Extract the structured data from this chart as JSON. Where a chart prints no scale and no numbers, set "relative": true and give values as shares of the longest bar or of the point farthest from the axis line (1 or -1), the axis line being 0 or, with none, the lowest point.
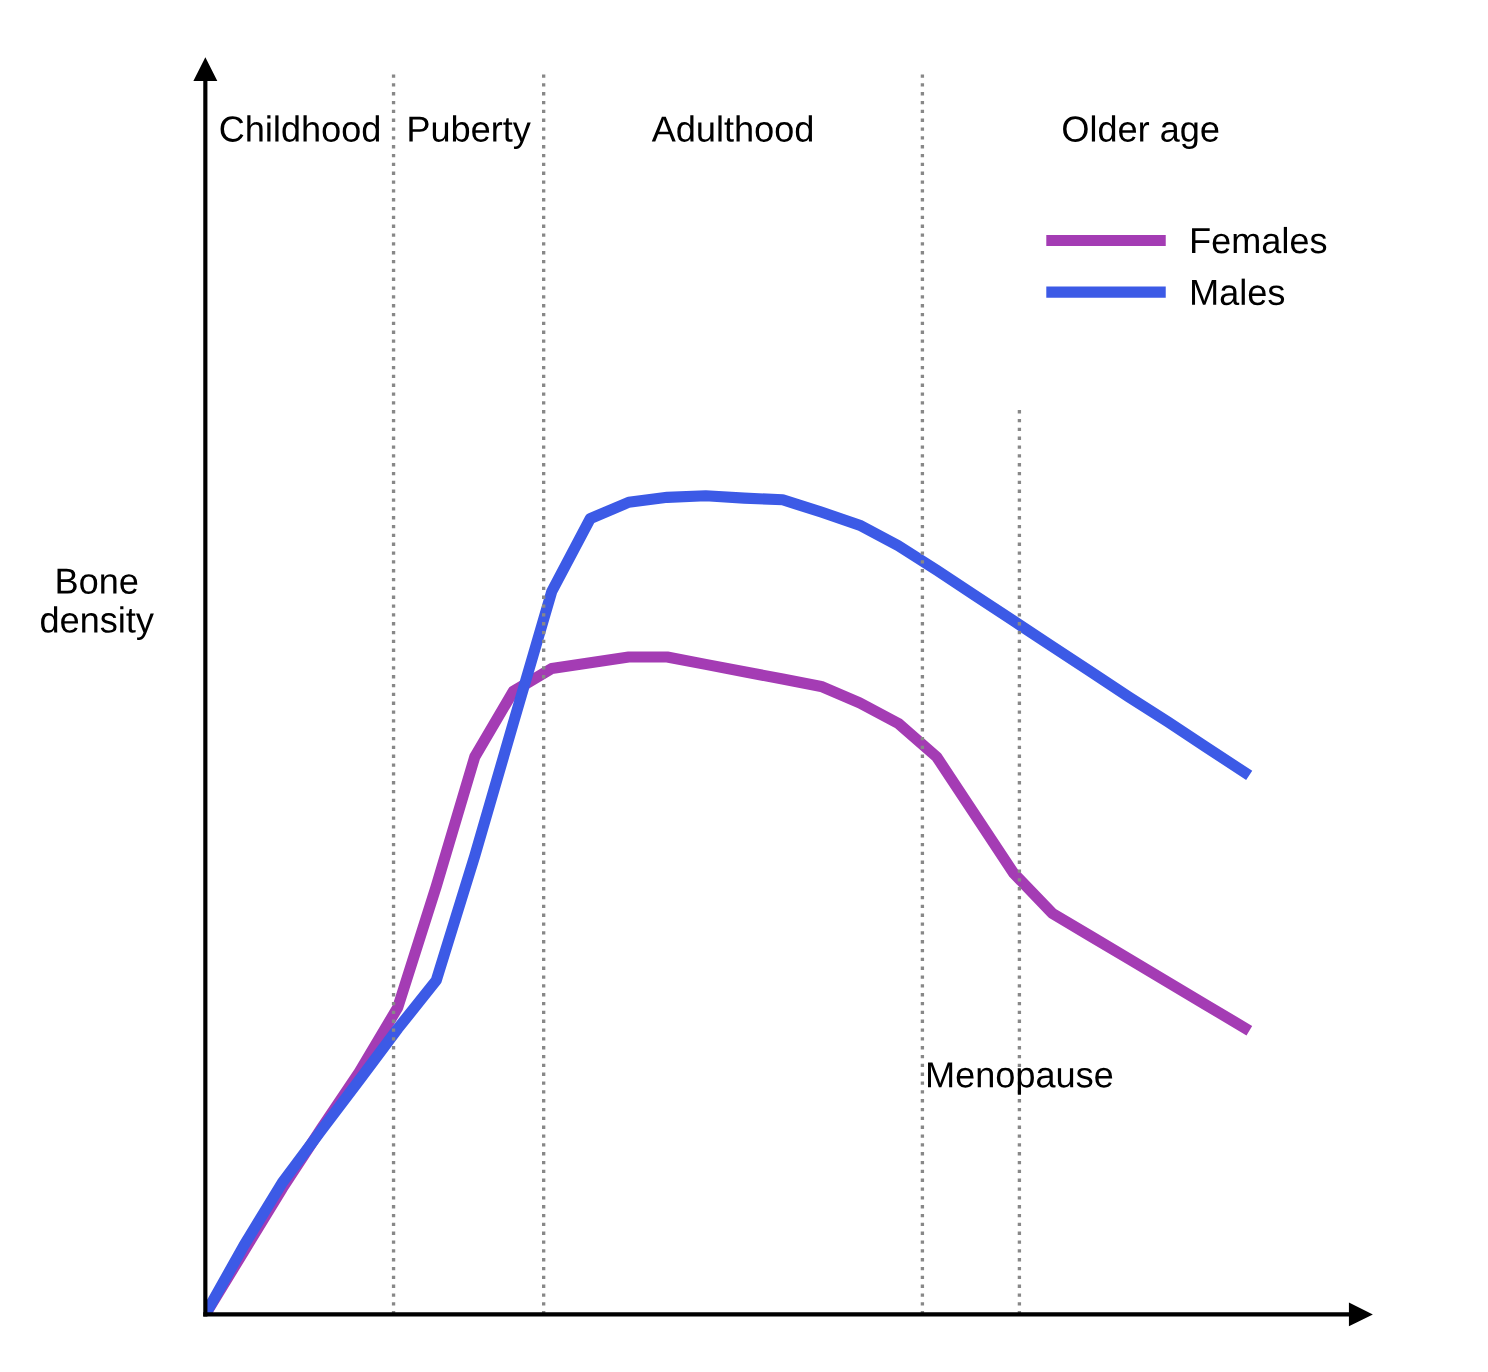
{
  "chart_data": {
    "type": "line",
    "relative": true,
    "ylabel": "Bone density",
    "legend": "top right",
    "marker": "none",
    "line_style": "solid",
    "categories": [
      null,
      null,
      null,
      null,
      null,
      null,
      null,
      null,
      null,
      null,
      null,
      null,
      null,
      null,
      null,
      null,
      null,
      null,
      null,
      null,
      null,
      null,
      null,
      null,
      null,
      null,
      null,
      null,
      null,
      null,
      null
    ],
    "series": [
      {
        "name": "Females",
        "color": "#a43cb4",
        "values": [
          0,
          0.077,
          0.154,
          0.226,
          0.296,
          0.375,
          0.523,
          0.681,
          0.761,
          0.789,
          0.796,
          0.803,
          0.803,
          0.794,
          0.785,
          0.776,
          0.767,
          0.747,
          0.722,
          0.681,
          0.61,
          0.539,
          0.49,
          0.462,
          0.434,
          0.406,
          0.378,
          0.35,
          null,
          null,
          null
        ]
      },
      {
        "name": "Males",
        "color": "#3c5ae6",
        "values": [
          0,
          0.084,
          0.161,
          0.224,
          0.286,
          0.349,
          0.408,
          0.56,
          0.722,
          0.883,
          0.972,
          0.992,
          0.998,
          1.0,
          0.997,
          0.995,
          0.98,
          0.964,
          0.939,
          0.909,
          0.878,
          0.847,
          0.816,
          0.785,
          0.754,
          0.724,
          0.693,
          0.662,
          null,
          null,
          null
        ]
      }
    ],
    "annotations": [
      "Childhood",
      "Puberty",
      "Adulthood",
      "Older age",
      "Menopause"
    ]
  }
}
